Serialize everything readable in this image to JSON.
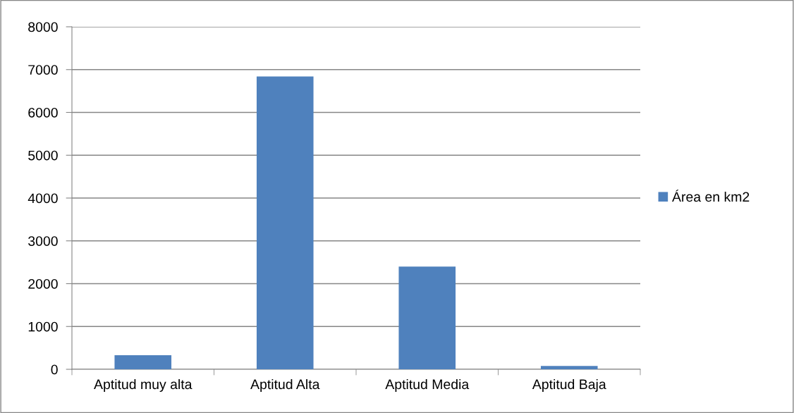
{
  "chart_data": {
    "type": "bar",
    "categories": [
      "Aptitud muy alta",
      "Aptitud Alta",
      "Aptitud Media",
      "Aptitud Baja"
    ],
    "series": [
      {
        "name": "Área en km2",
        "color": "#4f81bd",
        "values": [
          330,
          6840,
          2400,
          80
        ]
      }
    ],
    "ylim": [
      0,
      8000
    ],
    "yticks": [
      0,
      1000,
      2000,
      3000,
      4000,
      5000,
      6000,
      7000,
      8000
    ],
    "grid": "y",
    "legend": "right"
  }
}
